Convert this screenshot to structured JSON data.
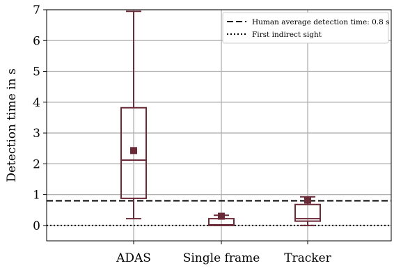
{
  "chart_data": {
    "type": "box",
    "title": "",
    "xlabel": "",
    "ylabel": "Detection time in s",
    "ylim": [
      -0.5,
      7
    ],
    "yticks": [
      0,
      1,
      2,
      3,
      4,
      5,
      6,
      7
    ],
    "grid": true,
    "legend_position": "top-right",
    "box_color": "#6b2a38",
    "categories": [
      "ADAS",
      "Single frame",
      "Tracker"
    ],
    "boxes": [
      {
        "category": "ADAS",
        "whisker_low": 0.22,
        "q1": 0.88,
        "median": 2.12,
        "q3": 3.82,
        "whisker_high": 6.95,
        "mean": 2.43
      },
      {
        "category": "Single frame",
        "whisker_low": 0.0,
        "q1": 0.0,
        "median": 0.02,
        "q3": 0.22,
        "whisker_high": 0.33,
        "mean": 0.3
      },
      {
        "category": "Tracker",
        "whisker_low": 0.0,
        "q1": 0.14,
        "median": 0.22,
        "q3": 0.68,
        "whisker_high": 0.93,
        "mean": 0.82
      }
    ],
    "reference_lines": [
      {
        "label": "Human average detection time: 0.8 s",
        "y": 0.8,
        "style": "dashed",
        "color": "#000000"
      },
      {
        "label": "First indirect sight",
        "y": 0.0,
        "style": "dotted",
        "color": "#000000"
      }
    ]
  }
}
